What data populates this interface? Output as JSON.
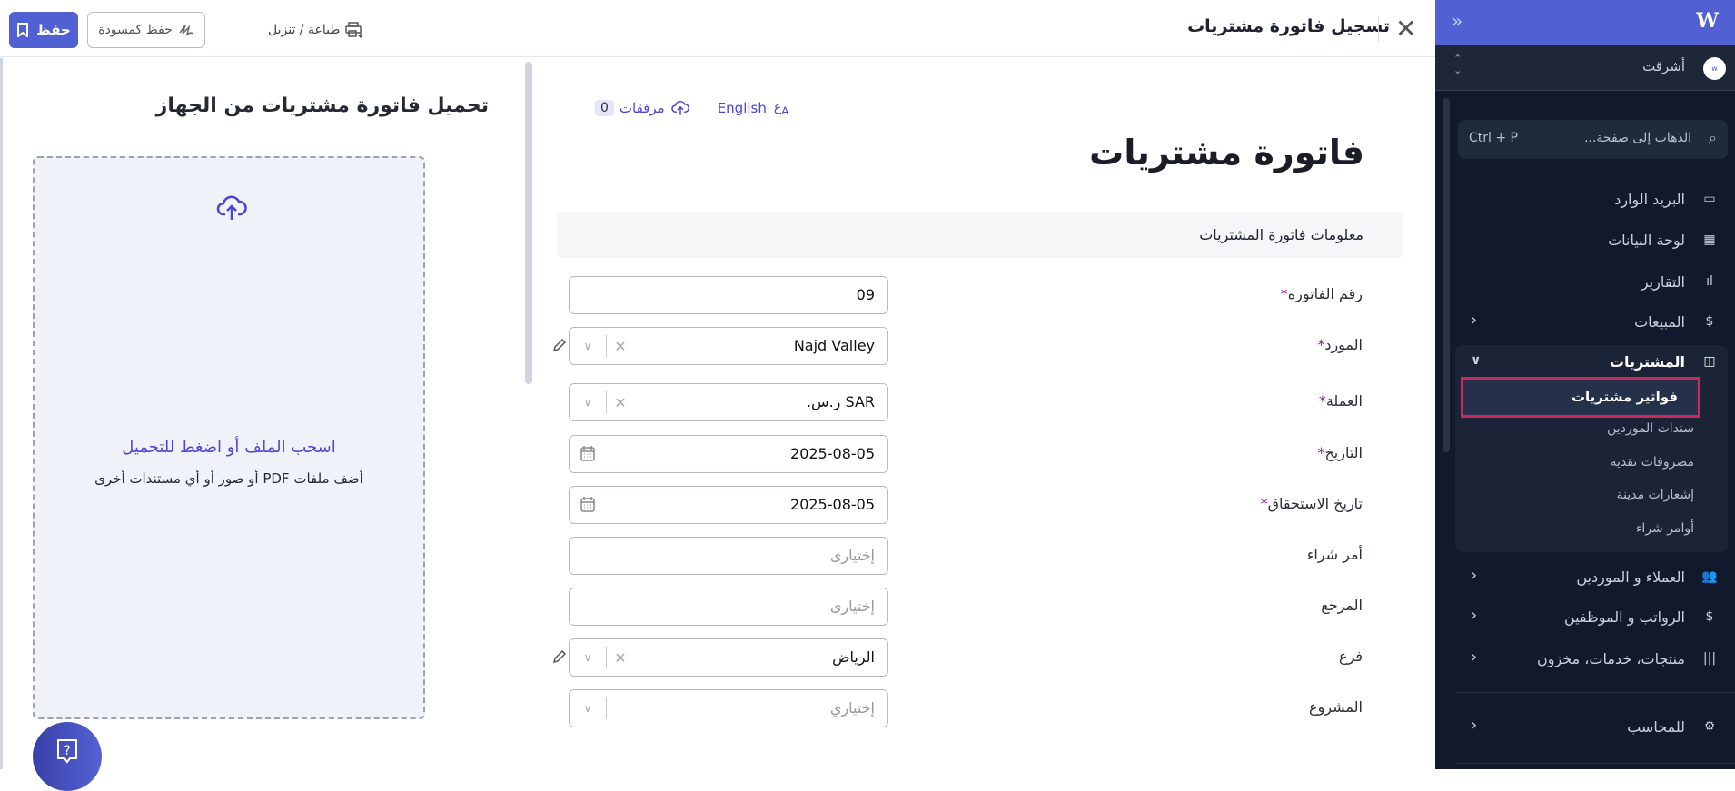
{
  "header": {
    "title": "تسجيل فاتورة مشتريات",
    "save_label": "حفظ",
    "draft_label": "حفظ كمسودة",
    "print_label": "طباعة / تنزيل"
  },
  "upload": {
    "title": "تحميل فاتورة مشتريات من الجهاز",
    "main_text": "اسحب الملف أو اضغط للتحميل",
    "sub_text": "أضف ملفات PDF أو صور أو أي مستندات أخرى"
  },
  "form": {
    "language_label": "English",
    "attachments_label": "مرفقات",
    "attachments_count": "0",
    "title": "فاتورة مشتريات",
    "section_title": "معلومات فاتورة المشتريات",
    "fields": [
      {
        "label": "رقم الفاتورة",
        "required": "*",
        "value": "09"
      },
      {
        "label": "المورد",
        "required": "*",
        "value": "Najd Valley"
      },
      {
        "label": "العملة",
        "required": "*",
        "value": "SAR ر.س."
      },
      {
        "label": "التاريخ",
        "required": "*",
        "value": "2025-08-05"
      },
      {
        "label": "تاريخ الاستحقاق",
        "required": "*",
        "value": "2025-08-05"
      },
      {
        "label": "أمر شراء",
        "placeholder": "إختيارى"
      },
      {
        "label": "المرجع",
        "placeholder": "إختيارى"
      },
      {
        "label": "فرع",
        "value": "الرياض"
      },
      {
        "label": "المشروع",
        "placeholder": "إختياري"
      }
    ]
  },
  "sidebar": {
    "org_name": "أشرقت",
    "search_placeholder": "الذهاب إلى صفحة...",
    "search_shortcut": "Ctrl + P",
    "items": [
      {
        "label": "البريد الوارد"
      },
      {
        "label": "لوحة البيانات"
      },
      {
        "label": "التقارير"
      },
      {
        "label": "المبيعات"
      },
      {
        "label": "المشتريات"
      },
      {
        "label": "العملاء و الموردين"
      },
      {
        "label": "الرواتب و الموظفين"
      },
      {
        "label": "منتجات، خدمات، مخزون"
      },
      {
        "label": "للمحاسب"
      }
    ],
    "purchases_sub": [
      {
        "label": "فواتير مشتريات"
      },
      {
        "label": "سندات الموردين"
      },
      {
        "label": "مصروفات نقدية"
      },
      {
        "label": "إشعارات مدينة"
      },
      {
        "label": "أوامر شراء"
      }
    ]
  },
  "colors": {
    "accent": "#5160d2",
    "sidebar_bg": "#111a2c",
    "active_outline": "#cc2a5e",
    "required": "#8b1a9c"
  }
}
